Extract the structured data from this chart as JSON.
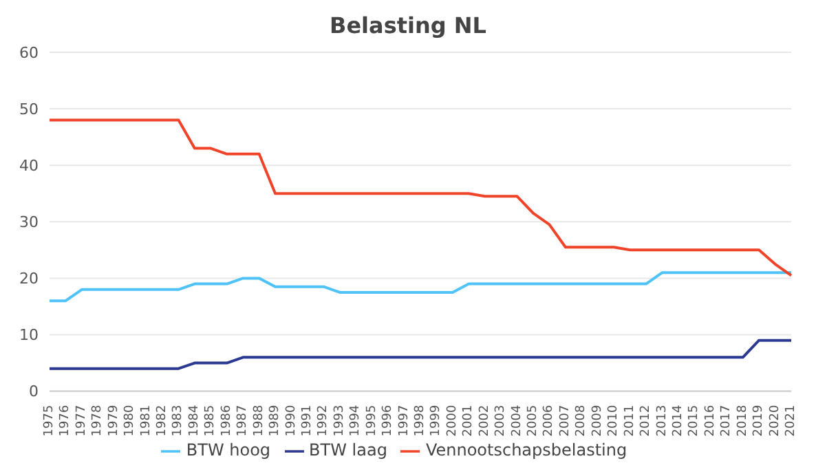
{
  "chart_data": {
    "type": "line",
    "title": "Belasting NL",
    "categories": [
      "1975",
      "1976",
      "1977",
      "1978",
      "1979",
      "1980",
      "1981",
      "1982",
      "1983",
      "1984",
      "1985",
      "1986",
      "1987",
      "1988",
      "1989",
      "1990",
      "1991",
      "1992",
      "1993",
      "1994",
      "1995",
      "1996",
      "1997",
      "1998",
      "1999",
      "2000",
      "2001",
      "2002",
      "2003",
      "2004",
      "2005",
      "2006",
      "2007",
      "2008",
      "2009",
      "2010",
      "2011",
      "2012",
      "2013",
      "2014",
      "2015",
      "2016",
      "2017",
      "2018",
      "2019",
      "2020",
      "2021"
    ],
    "series": [
      {
        "name": "BTW laag",
        "color": "#2b3990",
        "values": [
          4,
          4,
          4,
          4,
          4,
          4,
          4,
          4,
          4,
          5,
          5,
          5,
          6,
          6,
          6,
          6,
          6,
          6,
          6,
          6,
          6,
          6,
          6,
          6,
          6,
          6,
          6,
          6,
          6,
          6,
          6,
          6,
          6,
          6,
          6,
          6,
          6,
          6,
          6,
          6,
          6,
          6,
          6,
          6,
          9,
          9,
          9
        ]
      },
      {
        "name": "BTW hoog",
        "color": "#4fc3f7",
        "values": [
          16,
          16,
          18,
          18,
          18,
          18,
          18,
          18,
          18,
          19,
          19,
          19,
          20,
          20,
          18.5,
          18.5,
          18.5,
          18.5,
          17.5,
          17.5,
          17.5,
          17.5,
          17.5,
          17.5,
          17.5,
          17.5,
          19,
          19,
          19,
          19,
          19,
          19,
          19,
          19,
          19,
          19,
          19,
          19,
          21,
          21,
          21,
          21,
          21,
          21,
          21,
          21,
          21
        ]
      },
      {
        "name": "Vennootschapsbelasting",
        "color": "#f0442a",
        "values": [
          48,
          48,
          48,
          48,
          48,
          48,
          48,
          48,
          48,
          43,
          43,
          42,
          42,
          42,
          35,
          35,
          35,
          35,
          35,
          35,
          35,
          35,
          35,
          35,
          35,
          35,
          35,
          34.5,
          34.5,
          34.5,
          31.5,
          29.5,
          25.5,
          25.5,
          25.5,
          25.5,
          25,
          25,
          25,
          25,
          25,
          25,
          25,
          25,
          25,
          22.5,
          20.5
        ]
      }
    ],
    "ylim": [
      0,
      60
    ],
    "yticks": [
      0,
      10,
      20,
      30,
      40,
      50,
      60
    ],
    "grid": "y",
    "legend": "bottom",
    "marker": "none",
    "line_style": "solid"
  }
}
